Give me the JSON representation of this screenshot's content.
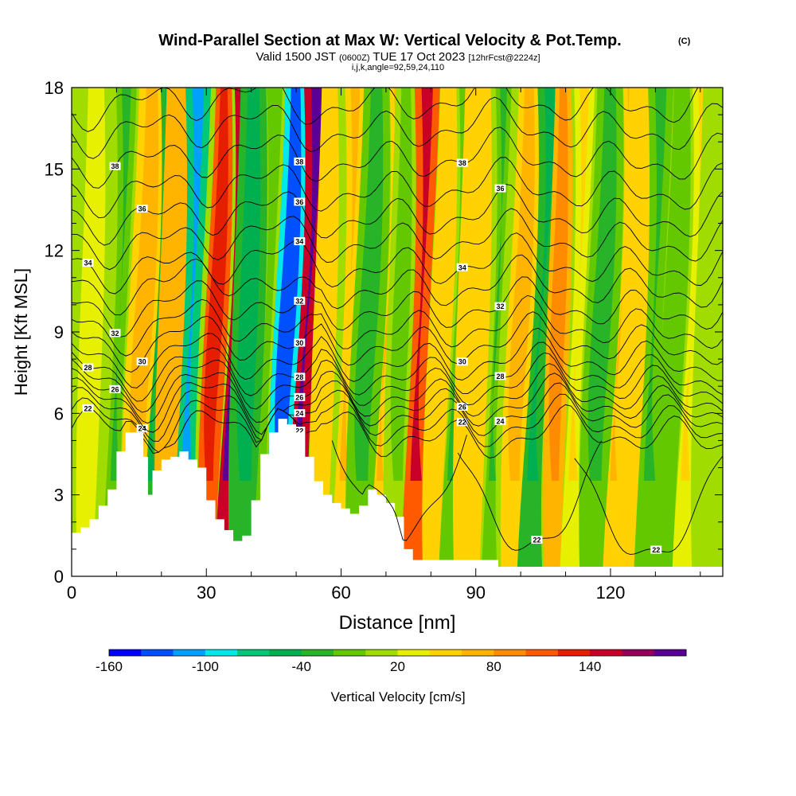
{
  "chart_data": {
    "type": "heatmap",
    "title": "Wind-Parallel Section at Max W: Vertical Velocity & Pot.Temp.",
    "title_mark": "(C)",
    "subtitle": {
      "prefix": "Valid 1500 JST",
      "utc": "(0600Z)",
      "date": "TUE 17 Oct 2023",
      "forecast": "[12hrFcst@2224z]"
    },
    "params": "i,j,k,angle=92,59,24,110",
    "xlabel": "Distance [nm]",
    "ylabel": "Height [Kft MSL]",
    "xlim": [
      0,
      145
    ],
    "ylim": [
      0,
      18
    ],
    "x_ticks": [
      "0",
      "30",
      "60",
      "90",
      "120"
    ],
    "x_tick_values": [
      0,
      30,
      60,
      90,
      120
    ],
    "y_ticks": [
      "0",
      "3",
      "6",
      "9",
      "12",
      "15",
      "18"
    ],
    "y_tick_values": [
      0,
      3,
      6,
      9,
      12,
      15,
      18
    ],
    "colorbar": {
      "label": "Vertical Velocity [cm/s]",
      "tick_labels": [
        "-160",
        "-100",
        "-40",
        "20",
        "80",
        "140"
      ],
      "colors": [
        "#0000ff",
        "#0050ff",
        "#00a0ff",
        "#00e8e8",
        "#00c878",
        "#00b050",
        "#28b428",
        "#64c800",
        "#a0dc00",
        "#e6f000",
        "#ffd200",
        "#ffb400",
        "#ff8c00",
        "#ff5a00",
        "#e61e00",
        "#c80028",
        "#96005a",
        "#5a0096"
      ]
    },
    "terrain_kft": [
      [
        0,
        1.6
      ],
      [
        2,
        1.8
      ],
      [
        4,
        2.1
      ],
      [
        6,
        2.6
      ],
      [
        8,
        3.2
      ],
      [
        10,
        4.6
      ],
      [
        12,
        5.3
      ],
      [
        14,
        5.3
      ],
      [
        16,
        4.4
      ],
      [
        17,
        3.0
      ],
      [
        18,
        3.9
      ],
      [
        20,
        4.3
      ],
      [
        22,
        4.4
      ],
      [
        24,
        4.6
      ],
      [
        26,
        4.3
      ],
      [
        28,
        4.0
      ],
      [
        30,
        2.8
      ],
      [
        32,
        2.1
      ],
      [
        34,
        1.7
      ],
      [
        36,
        1.3
      ],
      [
        38,
        1.5
      ],
      [
        40,
        2.8
      ],
      [
        42,
        4.5
      ],
      [
        44,
        5.3
      ],
      [
        46,
        5.8
      ],
      [
        48,
        5.6
      ],
      [
        50,
        5.3
      ],
      [
        52,
        4.4
      ],
      [
        54,
        3.5
      ],
      [
        56,
        3.0
      ],
      [
        58,
        2.7
      ],
      [
        60,
        2.5
      ],
      [
        62,
        2.3
      ],
      [
        64,
        2.6
      ],
      [
        66,
        3.2
      ],
      [
        68,
        3.0
      ],
      [
        70,
        2.7
      ],
      [
        72,
        2.2
      ],
      [
        74,
        1.0
      ],
      [
        76,
        0.6
      ],
      [
        80,
        0.6
      ],
      [
        85,
        0.6
      ],
      [
        90,
        0.6
      ],
      [
        93,
        0.6
      ],
      [
        95,
        0.35
      ],
      [
        100,
        0.35
      ],
      [
        110,
        0.35
      ],
      [
        120,
        0.35
      ],
      [
        130,
        0.35
      ],
      [
        145,
        0.35
      ]
    ],
    "w_field": {
      "x_cm_per_s_bands": [
        {
          "x": 3,
          "w": 10
        },
        {
          "x": 9,
          "w": -35
        },
        {
          "x": 14,
          "w": 30
        },
        {
          "x": 17,
          "w": -45
        },
        {
          "x": 21,
          "w": 40
        },
        {
          "x": 25,
          "w": -95
        },
        {
          "x": 30,
          "w": 80
        },
        {
          "x": 34,
          "w": 125
        },
        {
          "x": 38,
          "w": -55
        },
        {
          "x": 42,
          "w": -25
        },
        {
          "x": 46,
          "w": -110
        },
        {
          "x": 50,
          "w": 135
        },
        {
          "x": 55,
          "w": 25
        },
        {
          "x": 60,
          "w": 35
        },
        {
          "x": 64,
          "w": -30
        },
        {
          "x": 68,
          "w": 30
        },
        {
          "x": 72,
          "w": -20
        },
        {
          "x": 76,
          "w": 90
        },
        {
          "x": 80,
          "w": 20
        },
        {
          "x": 84,
          "w": -40
        },
        {
          "x": 88,
          "w": 25
        },
        {
          "x": 93,
          "w": -35
        },
        {
          "x": 98,
          "w": 30
        },
        {
          "x": 102,
          "w": -45
        },
        {
          "x": 107,
          "w": 45
        },
        {
          "x": 111,
          "w": 15
        },
        {
          "x": 116,
          "w": -40
        },
        {
          "x": 120,
          "w": 30
        },
        {
          "x": 124,
          "w": 20
        },
        {
          "x": 128,
          "w": -35
        },
        {
          "x": 132,
          "w": -25
        },
        {
          "x": 136,
          "w": 15
        },
        {
          "x": 141,
          "w": -10
        }
      ]
    },
    "theta_contours": [
      {
        "value": 22,
        "label": "22",
        "base_kft": 5.2
      },
      {
        "value": 23,
        "label": "",
        "base_kft": 5.6
      },
      {
        "value": 24,
        "label": "24",
        "base_kft": 6.0
      },
      {
        "value": 25,
        "label": "",
        "base_kft": 6.35
      },
      {
        "value": 26,
        "label": "26",
        "base_kft": 6.7
      },
      {
        "value": 27,
        "label": "",
        "base_kft": 7.1
      },
      {
        "value": 28,
        "label": "28",
        "base_kft": 7.5
      },
      {
        "value": 29,
        "label": "",
        "base_kft": 8.0
      },
      {
        "value": 30,
        "label": "30",
        "base_kft": 8.6
      },
      {
        "value": 31,
        "label": "",
        "base_kft": 9.2
      },
      {
        "value": 32,
        "label": "32",
        "base_kft": 9.9
      },
      {
        "value": 33,
        "label": "",
        "base_kft": 10.7
      },
      {
        "value": 34,
        "label": "34",
        "base_kft": 11.5
      },
      {
        "value": 35,
        "label": "",
        "base_kft": 12.4
      },
      {
        "value": 36,
        "label": "36",
        "base_kft": 13.3
      },
      {
        "value": 37,
        "label": "",
        "base_kft": 14.3
      },
      {
        "value": 38,
        "label": "38",
        "base_kft": 15.4
      },
      {
        "value": 39,
        "label": "",
        "base_kft": 16.5
      },
      {
        "value": 40,
        "label": "",
        "base_kft": 17.5
      }
    ],
    "low_level_contours_label": "22"
  }
}
